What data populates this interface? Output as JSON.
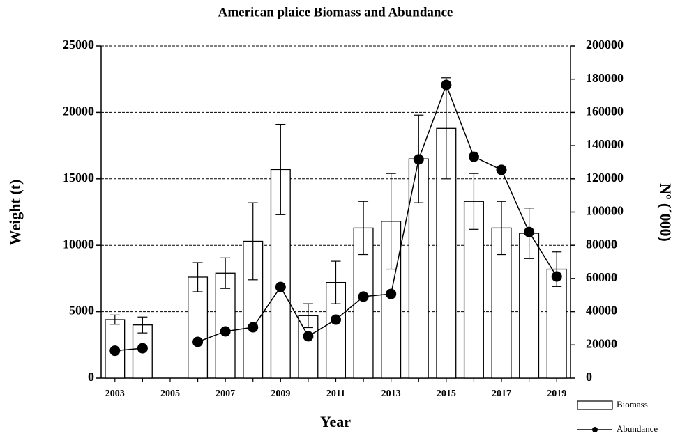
{
  "chart_data": {
    "type": "bar",
    "title": "American plaice Biomass and Abundance",
    "xlabel": "Year",
    "ylabel": "Weight (t)",
    "y2label": "Nº (´000)",
    "categories": [
      "2003",
      null,
      "2005",
      null,
      "2007",
      null,
      "2009",
      null,
      "2011",
      null,
      "2013",
      null,
      "2015",
      null,
      "2017",
      null,
      "2019"
    ],
    "series": [
      {
        "name": "Biomass",
        "type": "bar",
        "color": "#ffffff",
        "axis": "y",
        "values": [
          4400,
          4000,
          null,
          7600,
          7900,
          10300,
          15700,
          4700,
          7200,
          11300,
          11800,
          16500,
          18800,
          13300,
          11300,
          10900,
          8200
        ],
        "errors": [
          350,
          600,
          null,
          1100,
          1150,
          2900,
          3400,
          900,
          1600,
          2000,
          3600,
          3300,
          3800,
          2100,
          2000,
          1900,
          1300
        ]
      },
      {
        "name": "Abundance",
        "type": "line",
        "color": "#000000",
        "axis": "y2",
        "values": [
          16500,
          18000,
          null,
          21800,
          28100,
          30600,
          54900,
          25200,
          35200,
          49100,
          50700,
          131700,
          176500,
          133300,
          125400,
          88000,
          61200
        ]
      }
    ],
    "ylim": [
      0,
      25000
    ],
    "yticks": [
      0,
      5000,
      10000,
      15000,
      20000,
      25000
    ],
    "y2lim": [
      0,
      200000
    ],
    "y2ticks": [
      0,
      20000,
      40000,
      60000,
      80000,
      100000,
      120000,
      140000,
      160000,
      180000,
      200000
    ],
    "grid": true,
    "legend": "lower right"
  }
}
